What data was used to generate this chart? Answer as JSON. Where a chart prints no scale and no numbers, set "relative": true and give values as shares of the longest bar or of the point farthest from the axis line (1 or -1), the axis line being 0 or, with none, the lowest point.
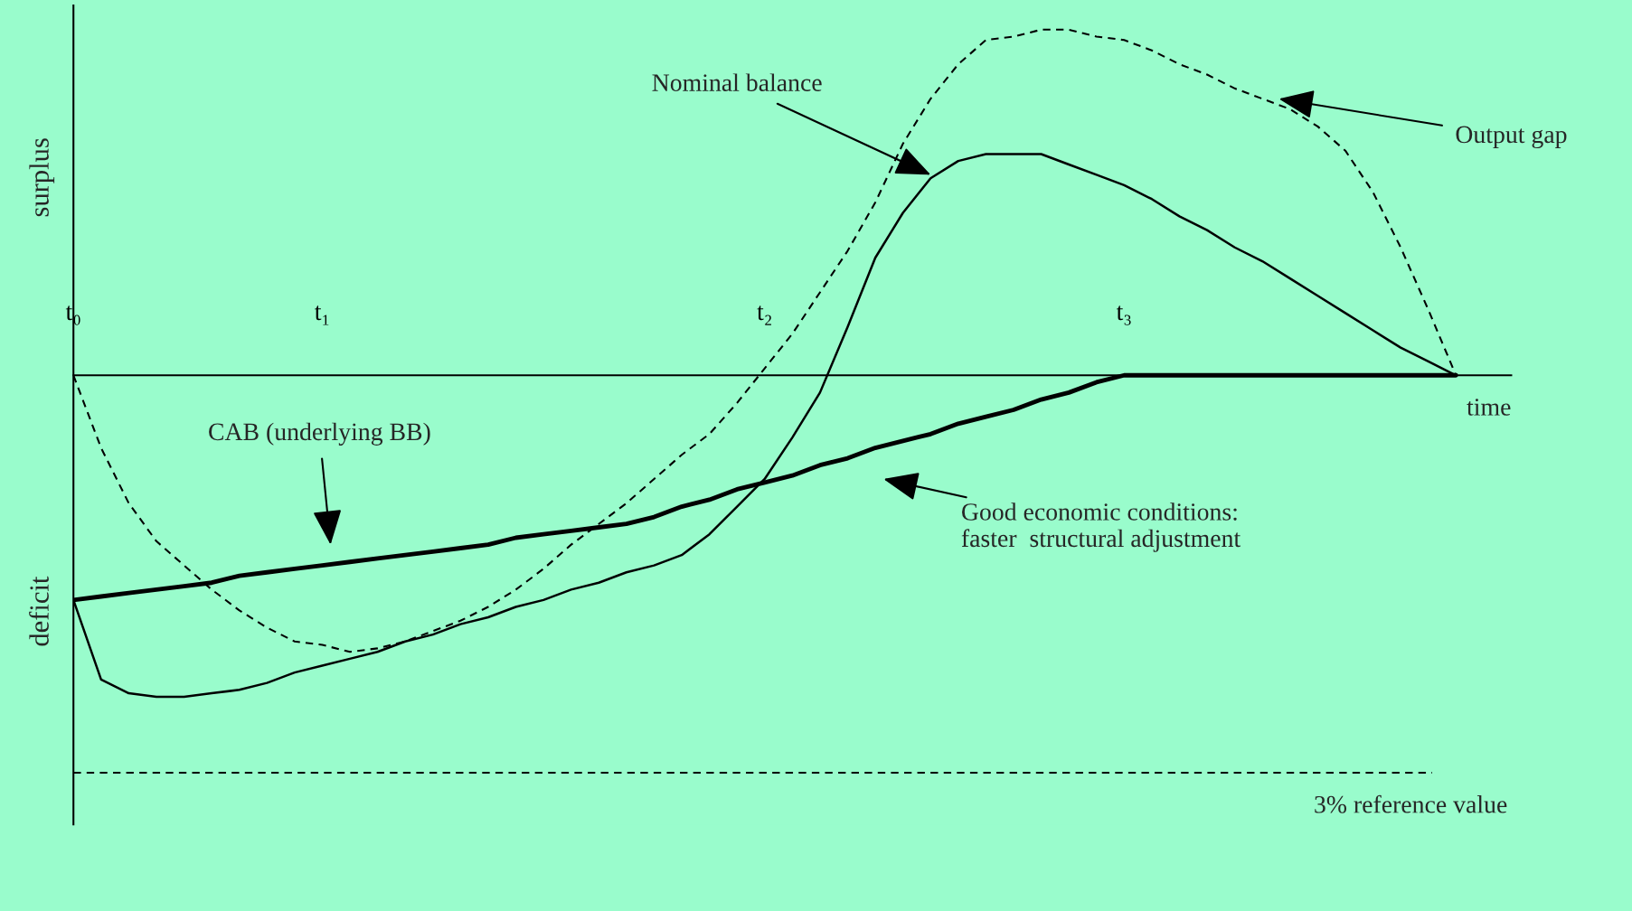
{
  "chart_data": {
    "type": "line",
    "relative": true,
    "xlabel": "time",
    "categories": [
      "t₀",
      null,
      null,
      null,
      null,
      null,
      null,
      null,
      null,
      "t₁",
      null,
      null,
      null,
      null,
      null,
      null,
      null,
      null,
      null,
      null,
      null,
      null,
      null,
      null,
      null,
      "t₂",
      null,
      null,
      null,
      null,
      null,
      null,
      null,
      null,
      null,
      null,
      null,
      null,
      "t₃",
      null,
      null,
      null,
      null,
      null,
      null,
      null,
      null,
      null,
      null,
      null,
      null,
      null,
      null
    ],
    "series": [
      {
        "color": "#000000",
        "line_style": "dashed",
        "values": [
          0,
          -0.21,
          -0.37,
          -0.48,
          -0.55,
          -0.62,
          -0.68,
          -0.73,
          -0.77,
          -0.78,
          -0.8,
          -0.79,
          -0.77,
          -0.74,
          -0.71,
          -0.67,
          -0.62,
          -0.56,
          -0.49,
          -0.43,
          -0.37,
          -0.3,
          -0.23,
          -0.17,
          -0.08,
          0.02,
          0.12,
          0.24,
          0.36,
          0.5,
          0.67,
          0.8,
          0.9,
          0.97,
          0.98,
          1.0,
          1.0,
          0.98,
          0.97,
          0.94,
          0.9,
          0.87,
          0.83,
          0.8,
          0.77,
          0.72,
          0.65,
          0.53,
          0.37,
          0.19,
          0,
          null,
          null
        ]
      },
      {
        "color": "#000000",
        "line_style": "solid",
        "values": [
          -0.65,
          -0.88,
          -0.92,
          -0.93,
          -0.93,
          -0.92,
          -0.91,
          -0.89,
          -0.86,
          -0.84,
          -0.82,
          -0.8,
          -0.77,
          -0.75,
          -0.72,
          -0.7,
          -0.67,
          -0.65,
          -0.62,
          -0.6,
          -0.57,
          -0.55,
          -0.52,
          -0.46,
          -0.38,
          -0.3,
          -0.18,
          -0.05,
          0.14,
          0.34,
          0.47,
          0.57,
          0.62,
          0.64,
          0.64,
          0.64,
          0.61,
          0.58,
          0.55,
          0.51,
          0.46,
          0.42,
          0.37,
          0.33,
          0.28,
          0.23,
          0.18,
          0.13,
          0.08,
          0.04,
          0,
          null,
          null
        ]
      },
      {
        "color": "#000000",
        "line_style": "solid",
        "values": [
          -0.65,
          -0.64,
          -0.63,
          -0.62,
          -0.61,
          -0.6,
          -0.58,
          -0.57,
          -0.56,
          -0.55,
          -0.54,
          -0.53,
          -0.52,
          -0.51,
          -0.5,
          -0.49,
          -0.47,
          -0.46,
          -0.45,
          -0.44,
          -0.43,
          -0.41,
          -0.38,
          -0.36,
          -0.33,
          -0.31,
          -0.29,
          -0.26,
          -0.24,
          -0.21,
          -0.19,
          -0.17,
          -0.14,
          -0.12,
          -0.1,
          -0.07,
          -0.05,
          -0.02,
          0,
          0,
          0,
          0,
          0,
          0,
          0,
          0,
          0,
          0,
          0,
          0,
          0,
          null,
          null
        ]
      }
    ],
    "ref_lines": [
      {
        "axis": "y",
        "value": -1.15,
        "label": "3% reference value",
        "color": "#000000",
        "line_style": "dashed"
      }
    ],
    "annotations": [
      "surplus",
      "deficit",
      "Nominal balance",
      "Output gap",
      "CAB (underlying BB)",
      "Good economic conditions:\nfaster  structural adjustment"
    ]
  }
}
